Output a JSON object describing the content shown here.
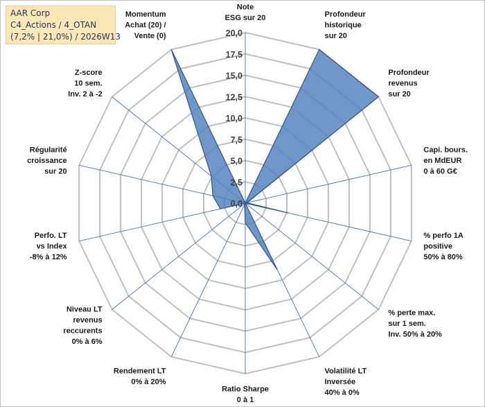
{
  "header": {
    "company": "AAR Corp",
    "portfolio": "C4_Actions / 4_OTAN",
    "stats": "(7,2% | 21,0%) / 2026W13"
  },
  "chart_data": {
    "type": "radar",
    "title": "AAR Corp",
    "rlim": [
      0,
      20
    ],
    "ticks": [
      {
        "value": 0,
        "label": "0,0"
      },
      {
        "value": 2.5,
        "label": "2,5"
      },
      {
        "value": 5,
        "label": "5,0"
      },
      {
        "value": 7.5,
        "label": "7,5"
      },
      {
        "value": 10,
        "label": "10,0"
      },
      {
        "value": 12.5,
        "label": "12,5"
      },
      {
        "value": 15,
        "label": "15,0"
      },
      {
        "value": 17.5,
        "label": "17,5"
      },
      {
        "value": 20,
        "label": "20,0"
      }
    ],
    "axes": [
      {
        "label": [
          "Note",
          "ESG sur 20"
        ],
        "value": 0
      },
      {
        "label": [
          "Profondeur",
          "historique",
          "sur 20"
        ],
        "value": 20
      },
      {
        "label": [
          "Profondeur",
          "revenus",
          "sur 20"
        ],
        "value": 20
      },
      {
        "label": [
          "Capi. bours.",
          "en MdEUR",
          "0 à 60 G€"
        ],
        "value": 0.2
      },
      {
        "label": [
          "% perfo 1A",
          "positive",
          "50% à 80%"
        ],
        "value": 5.2
      },
      {
        "label": [
          "% perte max.",
          "sur 1 sem.",
          "Inv. 50% à 20%"
        ],
        "value": 0
      },
      {
        "label": [
          "Volatilité LT",
          "Inversée",
          "40% à 0%"
        ],
        "value": 8.7
      },
      {
        "label": [
          "Ratio Sharpe",
          "0 à 1"
        ],
        "value": 2.3
      },
      {
        "label": [
          "Rendement LT",
          "0% à 20%"
        ],
        "value": 0.2
      },
      {
        "label": [
          "Niveau LT",
          "revenus",
          "reccurents",
          "0% à 6%"
        ],
        "value": 0
      },
      {
        "label": [
          "Perfo. LT",
          "vs Index",
          "-8% à 12%"
        ],
        "value": 3.0
      },
      {
        "label": [
          "Régularité",
          "croissance",
          "sur 20"
        ],
        "value": 3.9
      },
      {
        "label": [
          "Z-score",
          "10 sem.",
          "Inv. 2 à -2"
        ],
        "value": 5.1
      },
      {
        "label": [
          "Momentum",
          "Achat (20) /",
          "Vente (0)"
        ],
        "value": 20
      }
    ],
    "colors": {
      "fill": "#4f81bd",
      "stroke": "#2f5597",
      "grid": "#bfbfbf",
      "spoke": "#4472c4"
    }
  }
}
